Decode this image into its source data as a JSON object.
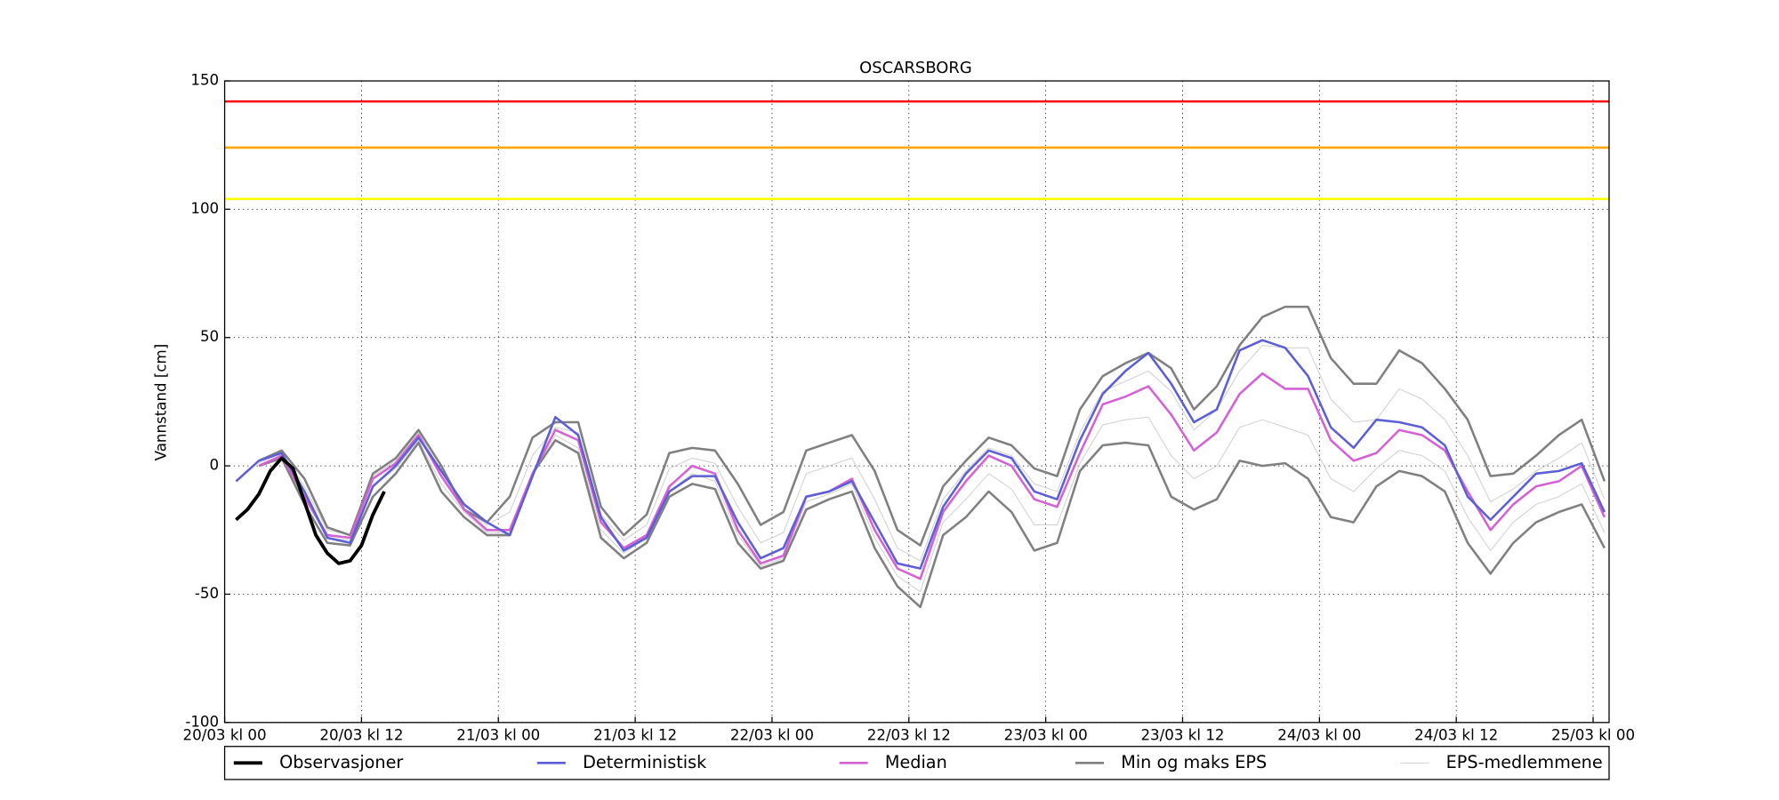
{
  "chart_data": {
    "type": "line",
    "title": "OSCARSBORG",
    "ylabel": "Vannstand [cm]",
    "xlim": [
      0,
      121.4
    ],
    "ylim": [
      -100,
      150
    ],
    "yticks": [
      -100,
      -50,
      0,
      50,
      100,
      150
    ],
    "xticks": [
      {
        "value": 0,
        "label": "20/03 kl 00"
      },
      {
        "value": 12,
        "label": "20/03 kl 12"
      },
      {
        "value": 24,
        "label": "21/03 kl 00"
      },
      {
        "value": 36,
        "label": "21/03 kl 12"
      },
      {
        "value": 48,
        "label": "22/03 kl 00"
      },
      {
        "value": 60,
        "label": "22/03 kl 12"
      },
      {
        "value": 72,
        "label": "23/03 kl 00"
      },
      {
        "value": 84,
        "label": "23/03 kl 12"
      },
      {
        "value": 96,
        "label": "24/03 kl 00"
      },
      {
        "value": 108,
        "label": "24/03 kl 12"
      },
      {
        "value": 120,
        "label": "25/03 kl 00"
      }
    ],
    "grid": true,
    "legend": "bottom",
    "hlines": [
      {
        "value": 142,
        "color": "#ff0000"
      },
      {
        "value": 124,
        "color": "#ffa500"
      },
      {
        "value": 104,
        "color": "#ffff00"
      }
    ],
    "x": [
      1,
      3,
      5,
      7,
      9,
      11,
      13,
      15,
      17,
      19,
      21,
      23,
      25,
      27,
      29,
      31,
      33,
      35,
      37,
      39,
      41,
      43,
      45,
      47,
      49,
      51,
      53,
      55,
      57,
      59,
      61,
      63,
      65,
      67,
      69,
      71,
      73,
      75,
      77,
      79,
      81,
      83,
      85,
      87,
      89,
      91,
      93,
      95,
      97,
      99,
      101,
      103,
      105,
      107,
      109,
      111,
      113,
      115,
      117,
      119,
      121
    ],
    "series": [
      {
        "name": "Observasjoner",
        "color": "#000000",
        "linewidth": 3,
        "x": [
          1,
          2,
          3,
          4,
          5,
          6,
          7,
          8,
          9,
          10,
          11,
          12,
          13,
          14
        ],
        "values": [
          -21,
          -17,
          -11,
          -2,
          3,
          -1,
          -14,
          -27,
          -34,
          -38,
          -37,
          -31,
          -19,
          -10
        ]
      },
      {
        "name": "Deterministisk",
        "color": "#5c5fd6",
        "linewidth": 2,
        "values": [
          -6,
          2,
          5,
          -10,
          -28,
          -30,
          -8,
          0,
          11,
          -2,
          -15,
          -22,
          -27,
          -4,
          19,
          12,
          -20,
          -33,
          -28,
          -10,
          -4,
          -4,
          -22,
          -36,
          -32,
          -12,
          -10,
          -6,
          -22,
          -38,
          -40,
          -16,
          -3,
          6,
          3,
          -10,
          -13,
          10,
          28,
          37,
          44,
          32,
          17,
          22,
          45,
          49,
          46,
          35,
          15,
          7,
          18,
          17,
          15,
          8,
          -12,
          -21,
          -12,
          -3,
          -2,
          1,
          -18
        ]
      },
      {
        "name": "Median",
        "color": "#d462d4",
        "linewidth": 2,
        "values": [
          null,
          0,
          4,
          -12,
          -27,
          -28,
          -5,
          1,
          12,
          -4,
          -17,
          -25,
          -25,
          -3,
          14,
          10,
          -22,
          -32,
          -27,
          -8,
          0,
          -3,
          -25,
          -38,
          -35,
          -12,
          -10,
          -5,
          -25,
          -40,
          -44,
          -18,
          -6,
          4,
          0,
          -13,
          -16,
          5,
          24,
          27,
          31,
          20,
          6,
          13,
          28,
          36,
          30,
          30,
          10,
          2,
          5,
          14,
          12,
          6,
          -10,
          -25,
          -15,
          -8,
          -6,
          0,
          -20
        ]
      },
      {
        "name": "Min og maks EPS",
        "color": "#808080",
        "linewidth": 2,
        "values": [
          null,
          2,
          6,
          -5,
          -24,
          -27,
          -3,
          3,
          14,
          0,
          -17,
          -22,
          -12,
          11,
          17,
          17,
          -16,
          -27,
          -19,
          5,
          7,
          6,
          -7,
          -23,
          -18,
          6,
          9,
          12,
          -2,
          -25,
          -31,
          -8,
          2,
          11,
          8,
          -1,
          -4,
          22,
          35,
          40,
          44,
          38,
          22,
          31,
          47,
          58,
          62,
          62,
          42,
          32,
          32,
          45,
          40,
          30,
          18,
          -4,
          -3,
          4,
          12,
          18,
          -6
        ],
        "min_values": [
          null,
          0,
          3,
          -15,
          -30,
          -31,
          -12,
          -3,
          9,
          -10,
          -20,
          -27,
          -27,
          -3,
          10,
          5,
          -28,
          -36,
          -30,
          -12,
          -7,
          -9,
          -30,
          -40,
          -37,
          -17,
          -13,
          -10,
          -32,
          -47,
          -55,
          -27,
          -20,
          -10,
          -18,
          -33,
          -30,
          -2,
          8,
          9,
          8,
          -12,
          -17,
          -13,
          2,
          0,
          1,
          -5,
          -20,
          -22,
          -8,
          -2,
          -4,
          -10,
          -30,
          -42,
          -30,
          -22,
          -18,
          -15,
          -32
        ]
      },
      {
        "name": "EPS-medlemmene",
        "color": "#d0d0d0",
        "linewidth": 0.8,
        "members": [
          [
            null,
            1,
            5,
            -8,
            -25,
            -27,
            -4,
            2,
            13,
            -2,
            -17,
            -23,
            -18,
            4,
            15,
            13,
            -19,
            -29,
            -23,
            -1,
            3,
            1,
            -16,
            -30,
            -26,
            -3,
            0,
            3,
            -13,
            -32,
            -37,
            -13,
            -2,
            7,
            4,
            -7,
            -10,
            13,
            29,
            33,
            37,
            29,
            14,
            22,
            37,
            47,
            46,
            46,
            26,
            17,
            18,
            30,
            26,
            18,
            4,
            -14,
            -9,
            -2,
            3,
            9,
            -13
          ],
          [
            null,
            0,
            3,
            -13,
            -28,
            -29,
            -8,
            -1,
            10,
            -7,
            -18,
            -26,
            -26,
            -3,
            12,
            7,
            -25,
            -34,
            -28,
            -10,
            -3,
            -6,
            -27,
            -39,
            -36,
            -14,
            -11,
            -7,
            -28,
            -43,
            -49,
            -22,
            -13,
            -3,
            -9,
            -23,
            -23,
            1,
            16,
            18,
            19,
            4,
            -5,
            0,
            15,
            18,
            15,
            12,
            -5,
            -10,
            -1,
            6,
            4,
            -2,
            -20,
            -33,
            -22,
            -15,
            -12,
            -7,
            -26
          ]
        ]
      }
    ]
  }
}
